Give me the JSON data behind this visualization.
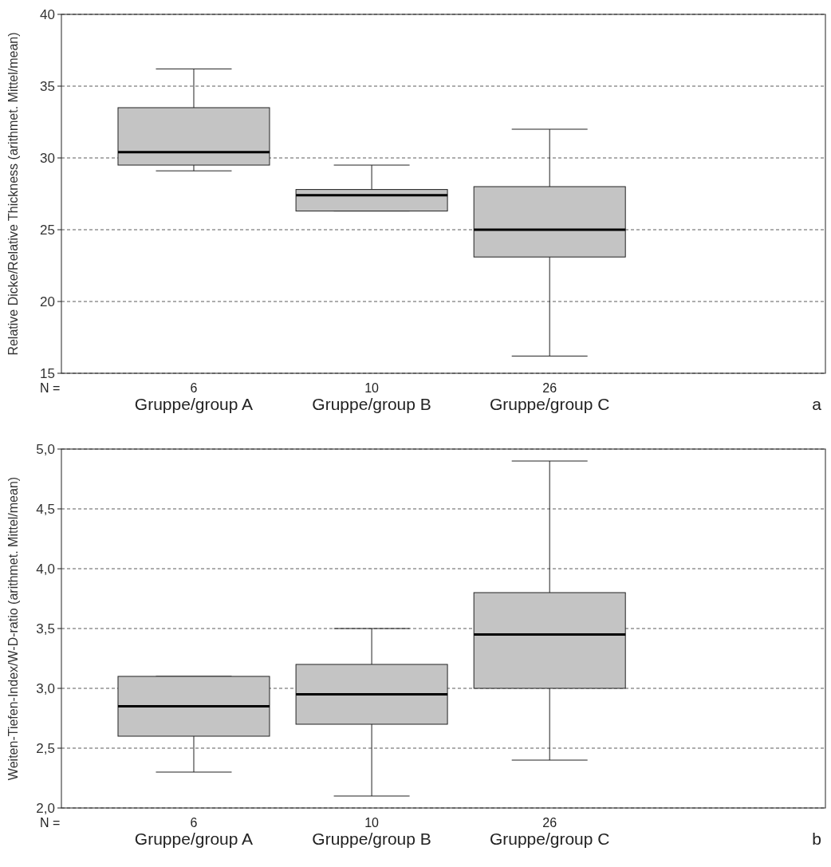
{
  "chart_data": [
    {
      "type": "box",
      "ylabel": "Relative Dicke/Relative Thickness (arithmet. Mittel/mean)",
      "categories": [
        "Gruppe/group A",
        "Gruppe/group B",
        "Gruppe/group C"
      ],
      "color": "#c4c4c4",
      "boxes": [
        {
          "low": 29.1,
          "q1": 29.5,
          "median": 30.4,
          "q3": 33.5,
          "high": 36.2
        },
        {
          "low": 26.3,
          "q1": 26.3,
          "median": 27.4,
          "q3": 27.8,
          "high": 29.5
        },
        {
          "low": 16.2,
          "q1": 23.1,
          "median": 25.0,
          "q3": 28.0,
          "high": 32.0
        }
      ],
      "ylim": [
        15,
        40
      ],
      "yticks": [
        15,
        20,
        25,
        30,
        35,
        40
      ],
      "grid": "y",
      "line_style": "dashed",
      "annotations": [
        "N =",
        "6",
        "10",
        "26",
        "a"
      ]
    },
    {
      "type": "box",
      "ylabel": "Weiten-Tiefen-Index/W-D-ratio (arithmet. Mittel/mean)",
      "categories": [
        "Gruppe/group A",
        "Gruppe/group B",
        "Gruppe/group C"
      ],
      "color": "#c4c4c4",
      "boxes": [
        {
          "low": 2.3,
          "q1": 2.6,
          "median": 2.85,
          "q3": 3.1,
          "high": 3.1
        },
        {
          "low": 2.1,
          "q1": 2.7,
          "median": 2.95,
          "q3": 3.2,
          "high": 3.5
        },
        {
          "low": 2.4,
          "q1": 3.0,
          "median": 3.45,
          "q3": 3.8,
          "high": 4.9
        }
      ],
      "ylim": [
        2,
        5
      ],
      "yticks": [
        {
          "value": 2,
          "label": "2,0"
        },
        {
          "value": 2.5,
          "label": "2,5"
        },
        {
          "value": 3,
          "label": "3,0"
        },
        {
          "value": 3.5,
          "label": "3,5"
        },
        {
          "value": 4,
          "label": "4,0"
        },
        {
          "value": 4.5,
          "label": "4,5"
        },
        {
          "value": 5,
          "label": "5,0"
        }
      ],
      "grid": "y",
      "line_style": "dashed",
      "annotations": [
        "N =",
        "6",
        "10",
        "26",
        "b"
      ]
    }
  ]
}
